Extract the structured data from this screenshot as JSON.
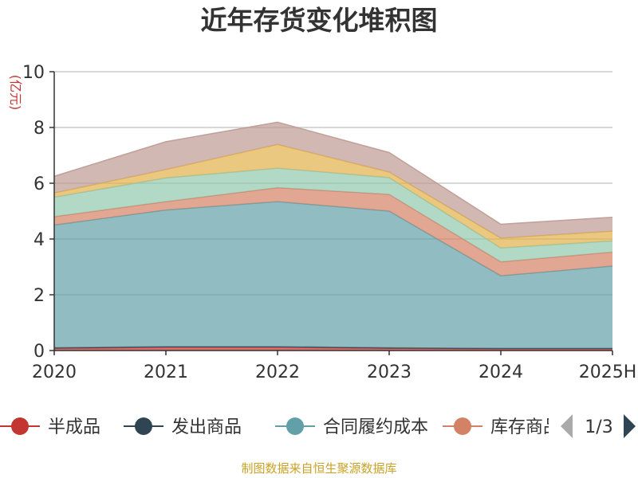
{
  "chart_data": {
    "type": "area",
    "stacked": true,
    "title": "近年存货变化堆积图",
    "ylabel": "(亿元)",
    "x": [
      "2020",
      "2021",
      "2022",
      "2023",
      "2024",
      "2025H"
    ],
    "ylim": [
      0,
      10
    ],
    "yticks": [
      "0",
      "2",
      "4",
      "6",
      "8",
      "10"
    ],
    "grid": true,
    "series": [
      {
        "name": "半成品",
        "color": "#c23531",
        "values": [
          0.08,
          0.12,
          0.12,
          0.08,
          0.06,
          0.06
        ]
      },
      {
        "name": "发出商品",
        "color": "#2f4554",
        "values": [
          0.02,
          0.02,
          0.02,
          0.02,
          0.02,
          0.02
        ]
      },
      {
        "name": "合同履约成本",
        "color": "#61a0a8",
        "values": [
          4.4,
          4.9,
          5.2,
          4.9,
          2.6,
          2.95
        ]
      },
      {
        "name": "库存商品",
        "color": "#d48265",
        "values": [
          0.3,
          0.3,
          0.5,
          0.6,
          0.5,
          0.5
        ]
      },
      {
        "name": "",
        "color": "#91c7ae",
        "values": [
          0.7,
          0.85,
          0.7,
          0.6,
          0.5,
          0.4
        ]
      },
      {
        "name": "",
        "color": "#e1b04a",
        "values": [
          0.15,
          0.3,
          0.85,
          0.2,
          0.35,
          0.35
        ]
      },
      {
        "name": "",
        "color": "#bd9a92",
        "values": [
          0.6,
          1.0,
          0.8,
          0.7,
          0.5,
          0.5
        ]
      }
    ]
  },
  "legend": {
    "page_indicator": "1/3"
  },
  "source_note": "制图数据来自恒生聚源数据库"
}
